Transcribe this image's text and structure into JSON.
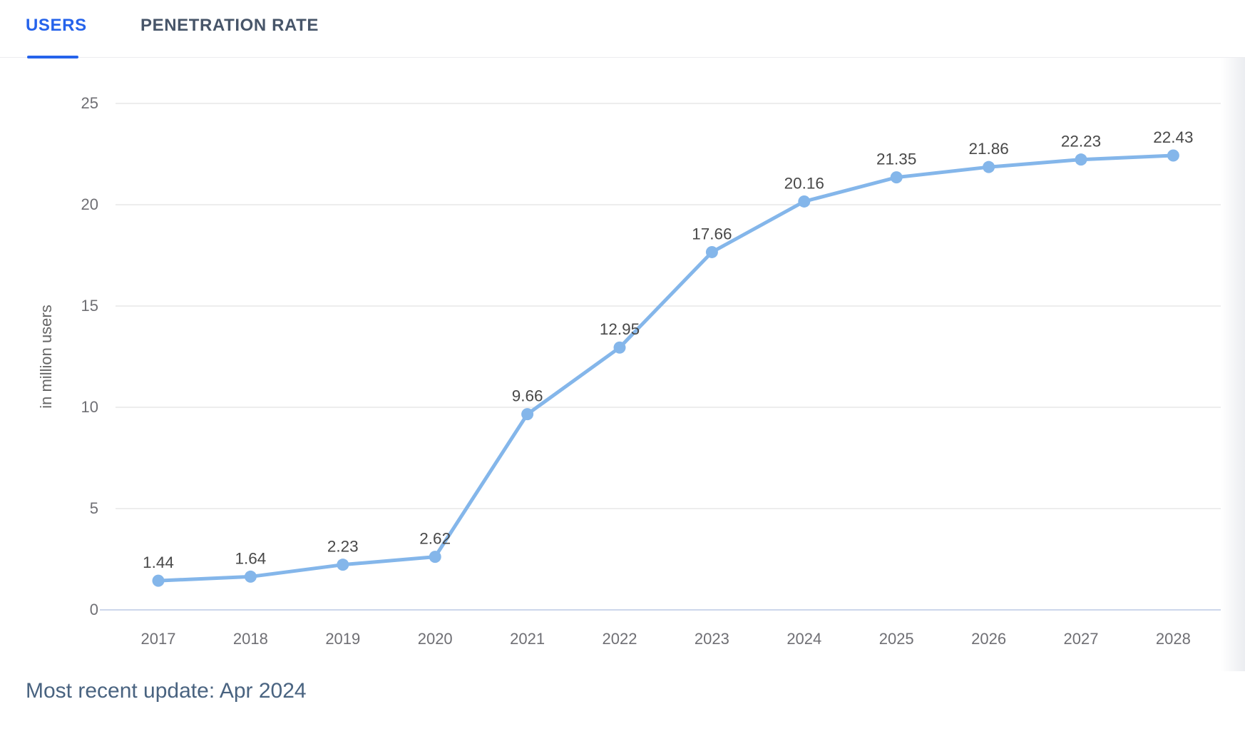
{
  "tabs": {
    "items": [
      {
        "label": "USERS",
        "active": true
      },
      {
        "label": "PENETRATION RATE",
        "active": false
      }
    ]
  },
  "footer": {
    "most_recent_update": "Most recent update: Apr 2024"
  },
  "colors": {
    "active_tab": "#2563eb",
    "inactive_tab": "#475569",
    "series_line": "#84b6ea",
    "gridline": "#e7e7e7",
    "axis_line": "#ccd6eb",
    "tick_label": "#6f6f74",
    "data_label": "#484848",
    "axis_title": "#666666",
    "footer_text": "#496380"
  },
  "chart_data": {
    "type": "line",
    "title": "",
    "categories": [
      "2017",
      "2018",
      "2019",
      "2020",
      "2021",
      "2022",
      "2023",
      "2024",
      "2025",
      "2026",
      "2027",
      "2028"
    ],
    "series": [
      {
        "name": "Users",
        "values": [
          1.44,
          1.64,
          2.23,
          2.62,
          9.66,
          12.95,
          17.66,
          20.16,
          21.35,
          21.86,
          22.23,
          22.43
        ]
      }
    ],
    "xlabel": "",
    "ylabel": "in million users",
    "ylim": [
      0,
      25
    ],
    "yticks": [
      0,
      5,
      10,
      15,
      20,
      25
    ],
    "grid": true,
    "legend": false,
    "data_labels": true,
    "data_label_decimals": 2
  }
}
